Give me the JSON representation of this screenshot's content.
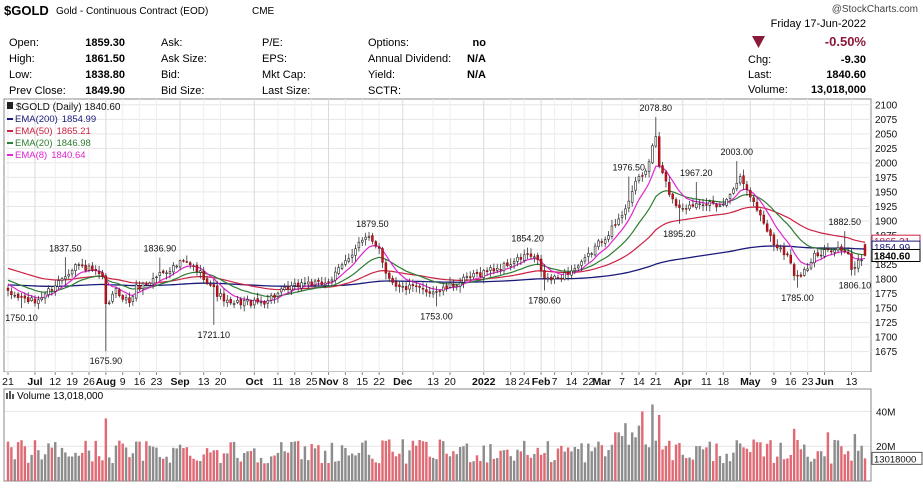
{
  "header": {
    "symbol": "$GOLD",
    "name": "Gold - Continuous Contract (EOD)",
    "exchange": "CME",
    "copyright": "@StockCharts.com",
    "date": "Friday  17-Jun-2022",
    "change_pct": "-0.50%",
    "chg_label": "Chg:",
    "chg_value": "-9.30",
    "last_label": "Last:",
    "last_value": "1840.60",
    "volume_label": "Volume:",
    "volume_value": "13,018,000",
    "down_color": "#8b1a3a"
  },
  "quote_table": [
    [
      {
        "label": "Open:",
        "value": "1859.30"
      },
      {
        "label": "Ask:",
        "value": ""
      },
      {
        "label": "P/E:",
        "value": ""
      },
      {
        "label": "Options:",
        "value": "no"
      }
    ],
    [
      {
        "label": "High:",
        "value": "1861.50"
      },
      {
        "label": "Ask Size:",
        "value": ""
      },
      {
        "label": "EPS:",
        "value": ""
      },
      {
        "label": "Annual Dividend:",
        "value": "N/A"
      }
    ],
    [
      {
        "label": "Low:",
        "value": "1838.80"
      },
      {
        "label": "Bid:",
        "value": ""
      },
      {
        "label": "Mkt Cap:",
        "value": ""
      },
      {
        "label": "Yield:",
        "value": "N/A"
      }
    ],
    [
      {
        "label": "Prev Close:",
        "value": "1849.90"
      },
      {
        "label": "Bid Size:",
        "value": ""
      },
      {
        "label": "Last Size:",
        "value": ""
      },
      {
        "label": "SCTR:",
        "value": ""
      }
    ]
  ],
  "chart_data": {
    "type": "candlestick",
    "price_legend": "$GOLD (Daily) 1840.60",
    "legend_placement": "top-left",
    "grid": true,
    "y_axis": {
      "min": 1640,
      "max": 2110,
      "ticks": [
        1675,
        1700,
        1725,
        1750,
        1775,
        1800,
        1825,
        1850,
        1875,
        1900,
        1925,
        1950,
        1975,
        2000,
        2025,
        2050,
        2075,
        2100
      ]
    },
    "x_ticks": [
      {
        "label": "21",
        "idx": 0
      },
      {
        "label": "Jul",
        "idx": 8,
        "bold": true
      },
      {
        "label": "12",
        "idx": 14
      },
      {
        "label": "19",
        "idx": 19
      },
      {
        "label": "26",
        "idx": 24
      },
      {
        "label": "Aug",
        "idx": 29,
        "bold": true
      },
      {
        "label": "9",
        "idx": 34
      },
      {
        "label": "16",
        "idx": 39
      },
      {
        "label": "23",
        "idx": 44
      },
      {
        "label": "Sep",
        "idx": 51,
        "bold": true
      },
      {
        "label": "13",
        "idx": 58
      },
      {
        "label": "20",
        "idx": 63
      },
      {
        "label": "Oct",
        "idx": 73,
        "bold": true
      },
      {
        "label": "11",
        "idx": 80
      },
      {
        "label": "18",
        "idx": 85
      },
      {
        "label": "25",
        "idx": 90
      },
      {
        "label": "Nov",
        "idx": 95,
        "bold": true
      },
      {
        "label": "8",
        "idx": 100
      },
      {
        "label": "15",
        "idx": 105
      },
      {
        "label": "22",
        "idx": 110
      },
      {
        "label": "Dec",
        "idx": 117,
        "bold": true
      },
      {
        "label": "13",
        "idx": 126
      },
      {
        "label": "20",
        "idx": 131
      },
      {
        "label": "2022",
        "idx": 141,
        "bold": true
      },
      {
        "label": "18",
        "idx": 149
      },
      {
        "label": "24",
        "idx": 153
      },
      {
        "label": "Feb",
        "idx": 158,
        "bold": true
      },
      {
        "label": "7",
        "idx": 162
      },
      {
        "label": "14",
        "idx": 167
      },
      {
        "label": "22",
        "idx": 172
      },
      {
        "label": "Mar",
        "idx": 176,
        "bold": true
      },
      {
        "label": "7",
        "idx": 182
      },
      {
        "label": "14",
        "idx": 187
      },
      {
        "label": "21",
        "idx": 192
      },
      {
        "label": "Apr",
        "idx": 200,
        "bold": true
      },
      {
        "label": "11",
        "idx": 207
      },
      {
        "label": "18",
        "idx": 212
      },
      {
        "label": "May",
        "idx": 220,
        "bold": true
      },
      {
        "label": "9",
        "idx": 227
      },
      {
        "label": "16",
        "idx": 232
      },
      {
        "label": "23",
        "idx": 237
      },
      {
        "label": "Jun",
        "idx": 242,
        "bold": true
      },
      {
        "label": "13",
        "idx": 250
      }
    ],
    "anchors": [
      [
        0,
        1775
      ],
      [
        8,
        1760
      ],
      [
        14,
        1790
      ],
      [
        20,
        1825
      ],
      [
        25,
        1815
      ],
      [
        28,
        1800
      ],
      [
        29,
        1752
      ],
      [
        32,
        1780
      ],
      [
        36,
        1760
      ],
      [
        38,
        1785
      ],
      [
        42,
        1795
      ],
      [
        45,
        1810
      ],
      [
        49,
        1820
      ],
      [
        52,
        1830
      ],
      [
        55,
        1820
      ],
      [
        58,
        1805
      ],
      [
        62,
        1775
      ],
      [
        66,
        1755
      ],
      [
        70,
        1762
      ],
      [
        73,
        1758
      ],
      [
        76,
        1762
      ],
      [
        80,
        1775
      ],
      [
        84,
        1785
      ],
      [
        88,
        1795
      ],
      [
        92,
        1790
      ],
      [
        96,
        1800
      ],
      [
        100,
        1830
      ],
      [
        104,
        1862
      ],
      [
        107,
        1870
      ],
      [
        110,
        1855
      ],
      [
        112,
        1810
      ],
      [
        116,
        1785
      ],
      [
        120,
        1785
      ],
      [
        124,
        1780
      ],
      [
        128,
        1780
      ],
      [
        130,
        1785
      ],
      [
        134,
        1795
      ],
      [
        138,
        1805
      ],
      [
        142,
        1815
      ],
      [
        146,
        1820
      ],
      [
        150,
        1830
      ],
      [
        154,
        1842
      ],
      [
        157,
        1830
      ],
      [
        159,
        1800
      ],
      [
        162,
        1800
      ],
      [
        164,
        1805
      ],
      [
        167,
        1815
      ],
      [
        170,
        1825
      ],
      [
        174,
        1855
      ],
      [
        178,
        1880
      ],
      [
        181,
        1900
      ],
      [
        183,
        1925
      ],
      [
        185,
        1950
      ],
      [
        187,
        1975
      ],
      [
        189,
        1985
      ],
      [
        191,
        2025
      ],
      [
        192,
        2045
      ],
      [
        193,
        1995
      ],
      [
        195,
        1965
      ],
      [
        197,
        1935
      ],
      [
        199,
        1925
      ],
      [
        202,
        1925
      ],
      [
        205,
        1935
      ],
      [
        208,
        1930
      ],
      [
        210,
        1920
      ],
      [
        213,
        1935
      ],
      [
        215,
        1960
      ],
      [
        217,
        1975
      ],
      [
        219,
        1960
      ],
      [
        221,
        1930
      ],
      [
        223,
        1910
      ],
      [
        225,
        1885
      ],
      [
        227,
        1860
      ],
      [
        229,
        1855
      ],
      [
        231,
        1840
      ],
      [
        233,
        1810
      ],
      [
        235,
        1810
      ],
      [
        237,
        1820
      ],
      [
        239,
        1840
      ],
      [
        241,
        1840
      ],
      [
        243,
        1850
      ],
      [
        245,
        1855
      ],
      [
        247,
        1850
      ],
      [
        249,
        1840
      ],
      [
        250,
        1815
      ],
      [
        252,
        1830
      ],
      [
        254,
        1840
      ]
    ],
    "annotations": [
      {
        "label": "1837.50",
        "idx": 17,
        "value": 1837.5,
        "pos": "above"
      },
      {
        "label": "1750.10",
        "idx": 4,
        "value": 1750.1,
        "pos": "below"
      },
      {
        "label": "1675.90",
        "idx": 29,
        "value": 1675.9,
        "pos": "below"
      },
      {
        "label": "1836.90",
        "idx": 45,
        "value": 1836.9,
        "pos": "above"
      },
      {
        "label": "1721.10",
        "idx": 61,
        "value": 1721.1,
        "pos": "below"
      },
      {
        "label": "1879.50",
        "idx": 108,
        "value": 1879.5,
        "pos": "above"
      },
      {
        "label": "1753.00",
        "idx": 127,
        "value": 1753.0,
        "pos": "below"
      },
      {
        "label": "1854.20",
        "idx": 154,
        "value": 1854.2,
        "pos": "above"
      },
      {
        "label": "1780.60",
        "idx": 159,
        "value": 1780.6,
        "pos": "below"
      },
      {
        "label": "1976.50",
        "idx": 184,
        "value": 1976.5,
        "pos": "above"
      },
      {
        "label": "2078.80",
        "idx": 192,
        "value": 2078.8,
        "pos": "above"
      },
      {
        "label": "1895.20",
        "idx": 199,
        "value": 1895.2,
        "pos": "below"
      },
      {
        "label": "1967.20",
        "idx": 204,
        "value": 1967.2,
        "pos": "above"
      },
      {
        "label": "2003.00",
        "idx": 216,
        "value": 2003.0,
        "pos": "above"
      },
      {
        "label": "1785.00",
        "idx": 234,
        "value": 1785.0,
        "pos": "below"
      },
      {
        "label": "1882.50",
        "idx": 248,
        "value": 1882.5,
        "pos": "above"
      },
      {
        "label": "1806.10",
        "idx": 251,
        "value": 1806.1,
        "pos": "below"
      }
    ],
    "series": [
      {
        "name": "EMA(200)",
        "last": "1854.99",
        "period": 200,
        "color": "#1a1a7a"
      },
      {
        "name": "EMA(50)",
        "last": "1865.21",
        "period": 50,
        "color": "#cc2244"
      },
      {
        "name": "EMA(20)",
        "last": "1846.98",
        "period": 20,
        "color": "#2e7d32"
      },
      {
        "name": "EMA(8)",
        "last": "1840.64",
        "period": 8,
        "color": "#e024d0"
      }
    ],
    "right_badges": [
      {
        "label": "1865.21",
        "value": 1865.21,
        "color": "#cc2244"
      },
      {
        "label": "1854.99",
        "value": 1854.99,
        "color": "#1a1a7a"
      },
      {
        "label": "1840.60",
        "value": 1840.6,
        "color": "#000000",
        "bold": true
      }
    ],
    "volume": {
      "legend": "Volume 13,018,000",
      "y_ticks": [
        {
          "label": "20M",
          "value": 20
        },
        {
          "label": "40M",
          "value": 40
        }
      ],
      "max": 46,
      "last_badge": "13018000",
      "last_value": 13.018
    }
  }
}
